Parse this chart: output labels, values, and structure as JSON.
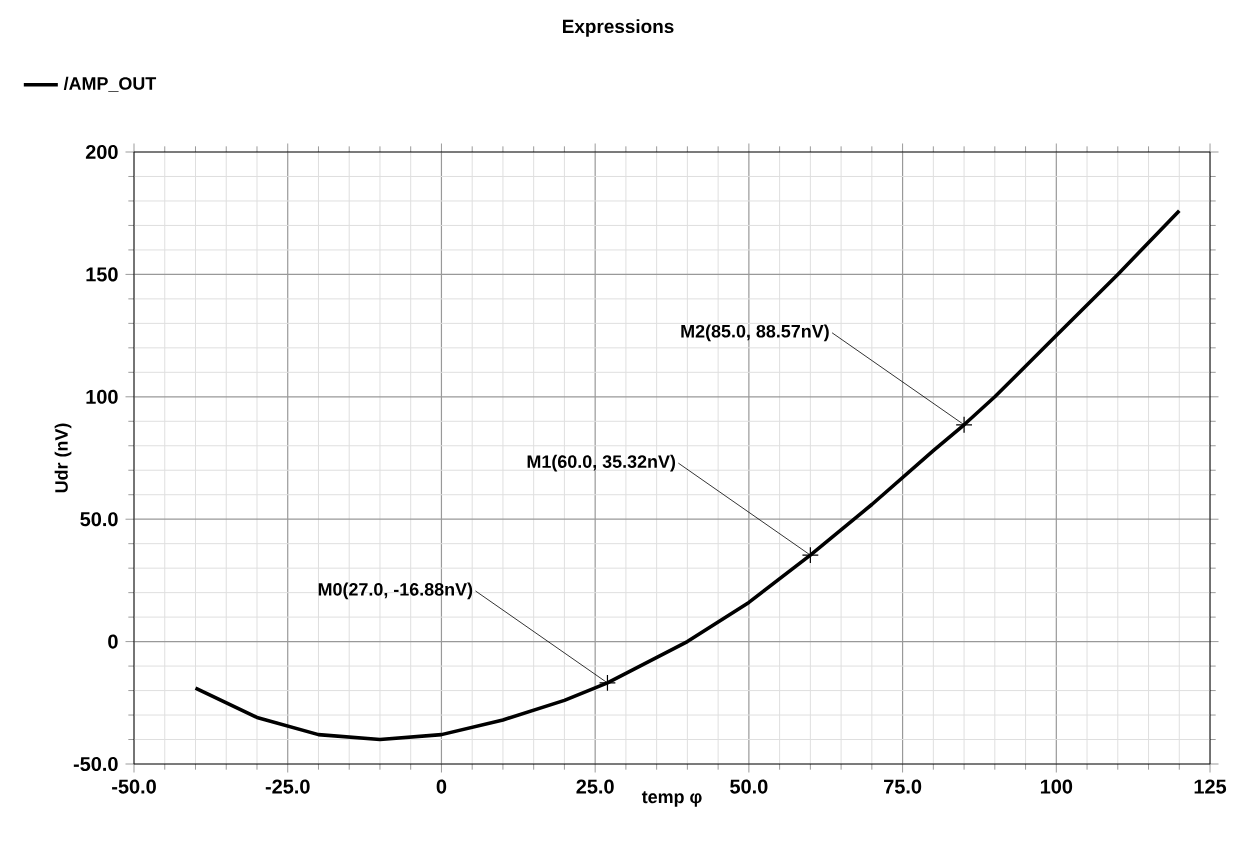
{
  "chart_data": {
    "type": "line",
    "title": "Expressions",
    "xlabel": "temp φ",
    "ylabel": "Udr (nV)",
    "x": [
      -40,
      -30,
      -20,
      -10,
      0,
      10,
      20,
      27,
      30,
      40,
      50,
      60,
      70,
      80,
      85,
      90,
      100,
      110,
      120
    ],
    "series": [
      {
        "name": "/AMP_OUT",
        "color": "#000000",
        "values": [
          -19,
          -31,
          -38,
          -40,
          -38,
          -32,
          -24,
          -16.88,
          -13,
          0,
          16,
          35.32,
          56,
          78,
          88.57,
          100,
          125,
          150,
          176
        ]
      }
    ],
    "xlim": [
      -50,
      125
    ],
    "xticks": [
      {
        "value": -50,
        "label": "-50.0"
      },
      {
        "value": -25,
        "label": "-25.0"
      },
      0,
      {
        "value": 25,
        "label": "25.0"
      },
      {
        "value": 50,
        "label": "50.0"
      },
      {
        "value": 75,
        "label": "75.0"
      },
      100,
      125
    ],
    "ylim": [
      -50,
      200
    ],
    "yticks": [
      {
        "value": -50,
        "label": "-50.0"
      },
      0,
      {
        "value": 50,
        "label": "50.0"
      },
      100,
      150,
      200
    ],
    "grid": true,
    "legend": "top left",
    "marker": "none",
    "line_style": "solid",
    "annotations": [
      {
        "text": "M0(27.0, -16.88nV)",
        "x": 27,
        "y": -16.88
      },
      {
        "text": "M1(60.0, 35.32nV)",
        "x": 60,
        "y": 35.32
      },
      {
        "text": "M2(85.0, 88.57nV)",
        "x": 85,
        "y": 88.57
      }
    ]
  }
}
